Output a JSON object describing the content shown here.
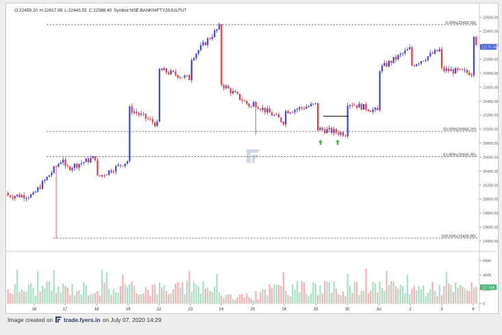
{
  "ohlc": {
    "open": "O:22459.20",
    "high": "H:22617.85",
    "low": "L:22443.55",
    "close": "C:22588.40",
    "symbol": "Symbol:NSE:BANKNIFTY20JULFUT"
  },
  "footer": {
    "prefix": "Image created on",
    "site": "trade.fyers.in",
    "suffix": "on July 07, 2020 14:29"
  },
  "colors": {
    "up": "#3a3fd4",
    "down": "#e8323c",
    "vol_up": "#a7dfc4",
    "vol_down": "#f4b0b4",
    "fib_line": "#555555",
    "arrow": "#4caf50",
    "price_tag": "#3d5bd9",
    "volume_tag": "#3cb371"
  },
  "chart_data": {
    "type": "candlestick",
    "title": "",
    "xlabel": "",
    "ylabel": "",
    "ylim": [
      19300,
      22650
    ],
    "grid": false,
    "x_ticks": [
      "16",
      "17",
      "18",
      "19",
      "22",
      "23",
      "24",
      "25",
      "26",
      "29",
      "30",
      "Jul",
      "2",
      "3",
      "6"
    ],
    "y_ticks": [
      "22600.00",
      "22400.00",
      "22200.00",
      "22000.00",
      "21800.00",
      "21600.00",
      "21400.00",
      "21200.00",
      "21000.00",
      "20800.00",
      "20600.00",
      "20400.00",
      "20200.00",
      "20000.00",
      "19800.00",
      "19600.00",
      "19400.00"
    ],
    "fib_levels": [
      {
        "label": "0.00%(22492.55)",
        "value": 22492.55
      },
      {
        "label": "50.00%(20966.20)",
        "value": 20966.2
      },
      {
        "label": "61.80%(20605.95)",
        "value": 20605.95
      },
      {
        "label": "100.00%(19439.80)",
        "value": 19439.8
      }
    ],
    "last_price_label": "22175.00",
    "last_price": 22175,
    "resistance_level": 21185,
    "support_arrows": [
      {
        "day": "29"
      },
      {
        "day": "30"
      }
    ],
    "price_path": [
      {
        "x": "16",
        "y": 20050
      },
      {
        "x": "16",
        "y": 19780
      },
      {
        "x": "16",
        "y": 20080
      },
      {
        "x": "17",
        "y": 20620
      },
      {
        "x": "17",
        "y": 20350
      },
      {
        "x": "17",
        "y": 19500
      },
      {
        "x": "17",
        "y": 20150
      },
      {
        "x": "17",
        "y": 20430
      },
      {
        "x": "18",
        "y": 20600
      },
      {
        "x": "18",
        "y": 20080
      },
      {
        "x": "18",
        "y": 20300
      },
      {
        "x": "19",
        "y": 20550
      },
      {
        "x": "19",
        "y": 21000
      },
      {
        "x": "19",
        "y": 21300
      },
      {
        "x": "22",
        "y": 21050
      },
      {
        "x": "22",
        "y": 21600
      },
      {
        "x": "22",
        "y": 21850
      },
      {
        "x": "23",
        "y": 21720
      },
      {
        "x": "23",
        "y": 22000
      },
      {
        "x": "24",
        "y": 22490
      },
      {
        "x": "24",
        "y": 21950
      },
      {
        "x": "24",
        "y": 21650
      },
      {
        "x": "25",
        "y": 21300
      },
      {
        "x": "25",
        "y": 21050
      },
      {
        "x": "25",
        "y": 21380
      },
      {
        "x": "26",
        "y": 21100
      },
      {
        "x": "26",
        "y": 21620
      },
      {
        "x": "26",
        "y": 21420
      },
      {
        "x": "26",
        "y": 21250
      },
      {
        "x": "29",
        "y": 21350
      },
      {
        "x": "29",
        "y": 20920
      },
      {
        "x": "29",
        "y": 21010
      },
      {
        "x": "30",
        "y": 20930
      },
      {
        "x": "30",
        "y": 21150
      },
      {
        "x": "30",
        "y": 21450
      },
      {
        "x": "30",
        "y": 21380
      },
      {
        "x": "Jul",
        "y": 21250
      },
      {
        "x": "Jul",
        "y": 21400
      },
      {
        "x": "Jul",
        "y": 21850
      },
      {
        "x": "2",
        "y": 22150
      },
      {
        "x": "2",
        "y": 21900
      },
      {
        "x": "3",
        "y": 22150
      },
      {
        "x": "3",
        "y": 21850
      },
      {
        "x": "6",
        "y": 21800
      },
      {
        "x": "6",
        "y": 22400
      },
      {
        "x": "6",
        "y": 22175
      }
    ],
    "volume_axis": {
      "ticks": [
        "600K",
        "400K",
        "200K",
        "0"
      ],
      "ylim": [
        0,
        700000
      ],
      "last_volume_label": "227.55K",
      "last_volume": 227550
    }
  }
}
